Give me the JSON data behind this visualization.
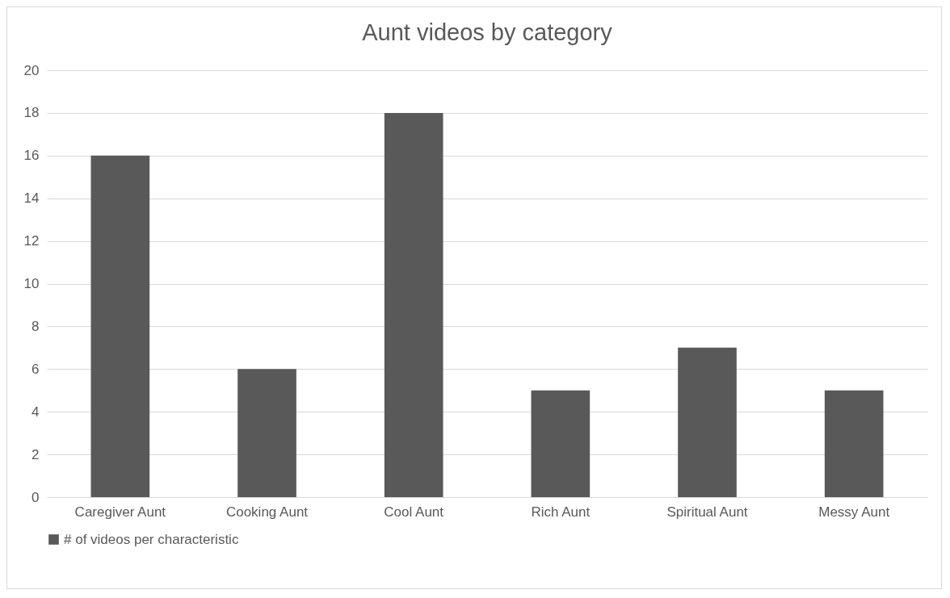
{
  "chart_data": {
    "type": "bar",
    "title": "Aunt videos by category",
    "categories": [
      "Caregiver Aunt",
      "Cooking Aunt",
      "Cool Aunt",
      "Rich Aunt",
      "Spiritual Aunt",
      "Messy Aunt"
    ],
    "series": [
      {
        "name": "# of videos per characteristic",
        "color": "#595959",
        "values": [
          16,
          6,
          18,
          5,
          7,
          5
        ]
      }
    ],
    "ylim": [
      0,
      20
    ],
    "yticks": [
      0,
      2,
      4,
      6,
      8,
      10,
      12,
      14,
      16,
      18,
      20
    ],
    "grid": "y",
    "legend": "bottom"
  }
}
